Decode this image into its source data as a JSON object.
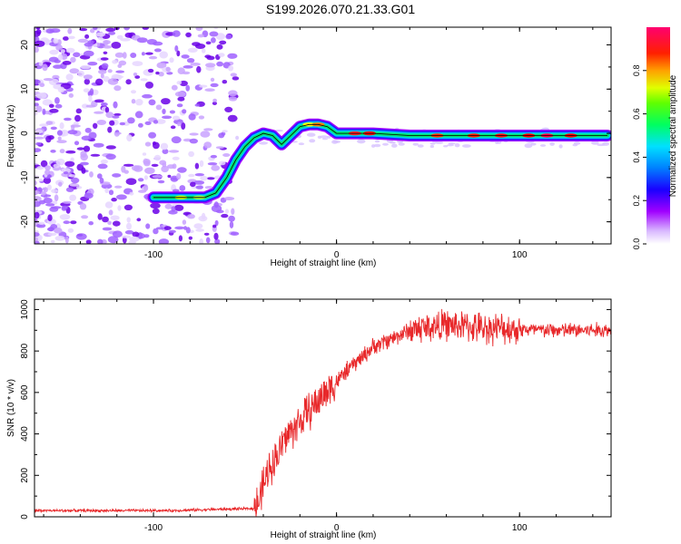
{
  "title": "S199.2026.070.21.33.G01",
  "colors": {
    "snr_line": "#e8282a",
    "spectrum_track": "#000000",
    "axis": "#000000"
  },
  "chart_data": [
    {
      "type": "heatmap",
      "name": "spectrogram",
      "xlabel": "Height of straight line (km)",
      "ylabel": "Frequency (Hz)",
      "xlim": [
        -165,
        150
      ],
      "ylim": [
        -25,
        24
      ],
      "xticks": [
        -100,
        0,
        100
      ],
      "yticks": [
        -20,
        -10,
        0,
        10,
        20
      ],
      "colorbar": {
        "label": "Normalized spectral amplitude",
        "range": [
          0,
          1
        ],
        "ticks": [
          0.0,
          0.2,
          0.4,
          0.6,
          0.8
        ],
        "tick_labels": [
          "0.0",
          "0.2",
          "0.4",
          "0.6",
          "0.8"
        ],
        "colors": [
          "#ffffff",
          "#a000ff",
          "#0000ff",
          "#00c8ff",
          "#00ff80",
          "#a0ff00",
          "#ffff00",
          "#ff8000",
          "#ff0000",
          "#ff0080"
        ]
      },
      "signal_track": {
        "x": [
          -100,
          -90,
          -80,
          -72,
          -66,
          -60,
          -55,
          -50,
          -45,
          -40,
          -35,
          -30,
          -25,
          -20,
          -15,
          -10,
          -5,
          0,
          10,
          20,
          40,
          60,
          80,
          100,
          120,
          148
        ],
        "y": [
          -14.5,
          -14.5,
          -14.5,
          -14.5,
          -13.5,
          -10,
          -6,
          -3,
          -1,
          0,
          -0.5,
          -2.5,
          -0.5,
          1.5,
          2,
          2,
          1.5,
          0,
          0,
          0,
          -0.5,
          -0.5,
          -0.5,
          -0.5,
          -0.5,
          -0.5
        ]
      },
      "noise_region": {
        "x_from": -165,
        "x_to": -55,
        "y_from": -25,
        "y_to": 24
      }
    },
    {
      "type": "line",
      "name": "snr",
      "xlabel": "Height of straight line (km)",
      "ylabel": "SNR (10 * v/v)",
      "xlim": [
        -165,
        150
      ],
      "ylim": [
        0,
        1050
      ],
      "xticks": [
        -100,
        0,
        100
      ],
      "yticks": [
        0,
        200,
        400,
        600,
        800,
        1000
      ],
      "series": [
        {
          "name": "SNR",
          "x": [
            -165,
            -150,
            -130,
            -110,
            -90,
            -70,
            -55,
            -45,
            -42,
            -40,
            -36,
            -32,
            -28,
            -24,
            -20,
            -16,
            -12,
            -8,
            -4,
            0,
            5,
            10,
            15,
            20,
            25,
            30,
            35,
            40,
            45,
            50,
            55,
            60,
            70,
            80,
            90,
            100,
            110,
            120,
            130,
            140,
            150
          ],
          "y": [
            30,
            30,
            30,
            30,
            30,
            35,
            38,
            40,
            80,
            150,
            250,
            300,
            380,
            420,
            460,
            500,
            540,
            580,
            620,
            650,
            700,
            740,
            780,
            820,
            840,
            860,
            880,
            900,
            910,
            915,
            920,
            925,
            920,
            910,
            910,
            905,
            900,
            900,
            900,
            900,
            900
          ]
        }
      ]
    }
  ],
  "x_tick_labels": [
    "-100",
    "0",
    "100"
  ],
  "spec_y_tick_labels": [
    "-20",
    "-10",
    "0",
    "10",
    "20"
  ],
  "snr_y_tick_labels": [
    "0",
    "200",
    "400",
    "600",
    "800",
    "1000"
  ]
}
